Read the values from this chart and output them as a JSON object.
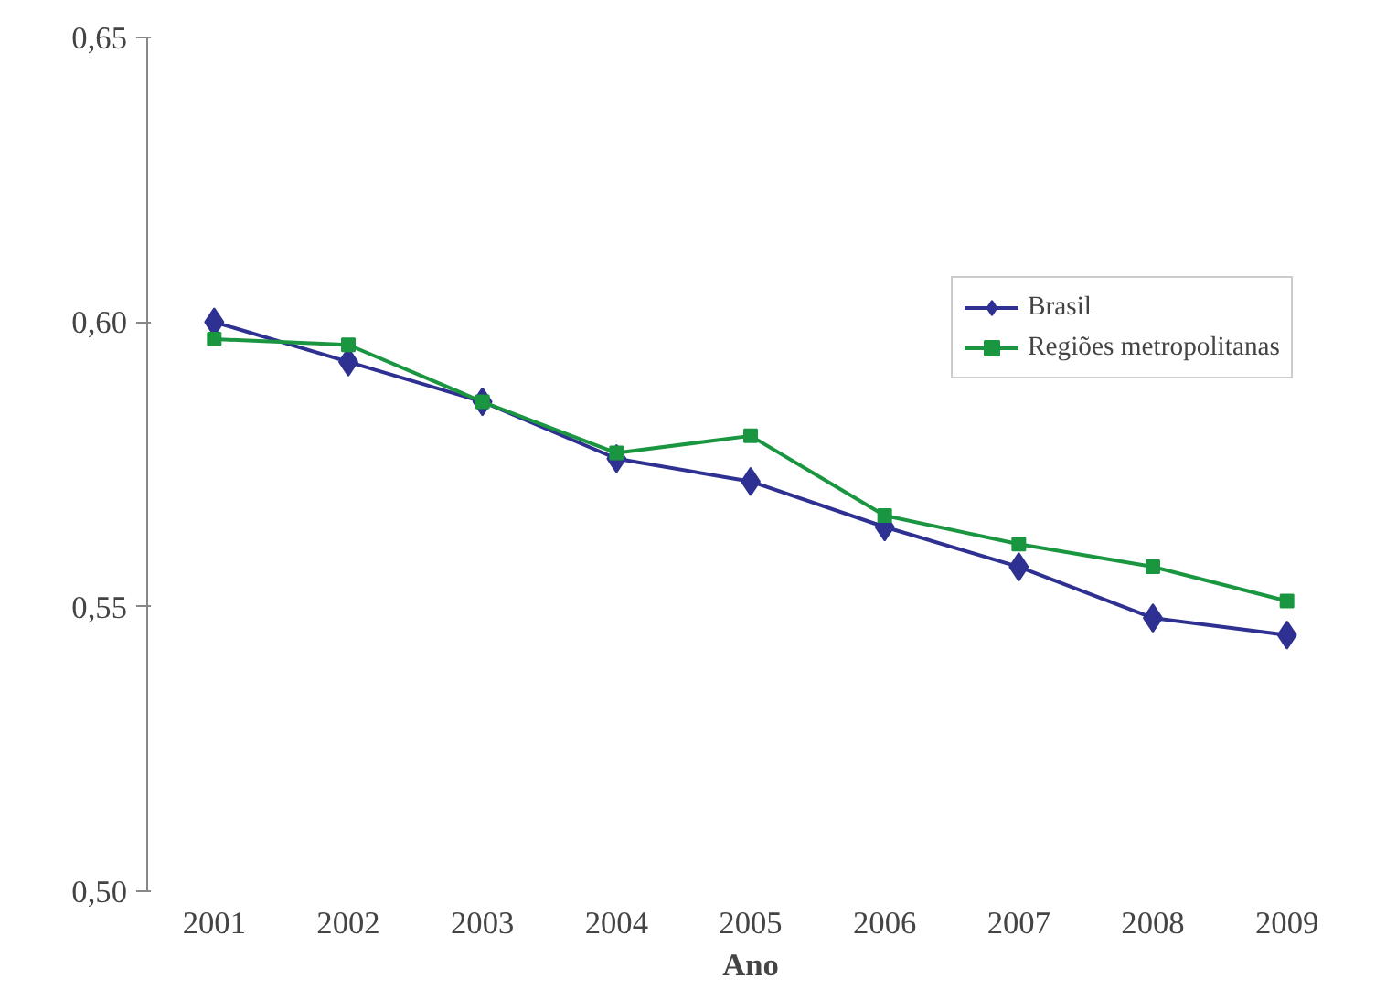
{
  "chart_data": {
    "type": "line",
    "xlabel": "Ano",
    "categories": [
      "2001",
      "2002",
      "2003",
      "2004",
      "2005",
      "2006",
      "2007",
      "2008",
      "2009"
    ],
    "series": [
      {
        "name": "Brasil",
        "color": "#2e3192",
        "marker": "diamond",
        "values": [
          0.6,
          0.593,
          0.586,
          0.576,
          0.572,
          0.564,
          0.557,
          0.548,
          0.545
        ]
      },
      {
        "name": "Regiões metropolitanas",
        "color": "#1a9641",
        "marker": "square",
        "values": [
          0.597,
          0.596,
          0.586,
          0.577,
          0.58,
          0.566,
          0.561,
          0.557,
          0.551
        ]
      }
    ],
    "ylim": [
      0.5,
      0.65
    ],
    "yticks": [
      {
        "value": 0.5,
        "label": "0,50"
      },
      {
        "value": 0.55,
        "label": "0,55"
      },
      {
        "value": 0.6,
        "label": "0,60"
      },
      {
        "value": 0.65,
        "label": "0,65"
      }
    ],
    "grid": false,
    "legend": "right",
    "line_style": "solid"
  }
}
